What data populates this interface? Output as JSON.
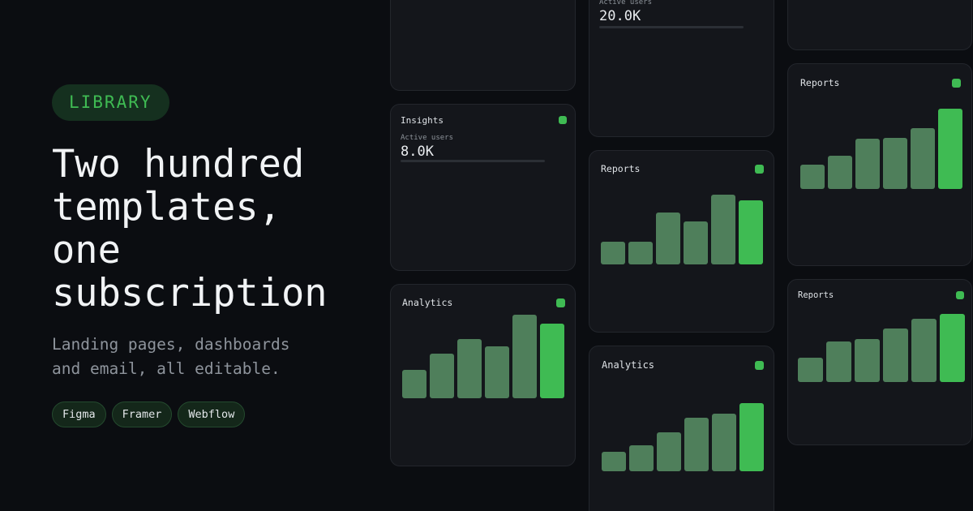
{
  "hero": {
    "badge": "LIBRARY",
    "headline_lines": [
      "Two hundred",
      "templates,",
      "one",
      "subscription"
    ],
    "subhead_lines": [
      "Landing pages, dashboards",
      "and email, all editable."
    ],
    "chips": [
      "Figma",
      "Framer",
      "Webflow"
    ]
  },
  "colors": {
    "accent": "#3fbb53",
    "bar": "#4f7f5b",
    "card": "#14161b",
    "background": "#0b0d11"
  },
  "cards": [
    {
      "type": "blank"
    },
    {
      "type": "metric",
      "title": "Insights",
      "label": "Active users",
      "value": "8.0K",
      "progress": 0.0
    },
    {
      "type": "bars",
      "title": "Analytics",
      "values": [
        0.34,
        0.53,
        0.71,
        0.62,
        1.0,
        0.89
      ]
    },
    {
      "type": "metric",
      "title": "",
      "label": "Active users",
      "value": "20.0K",
      "progress": 0.0
    },
    {
      "type": "bars",
      "title": "Reports",
      "values": [
        0.33,
        0.33,
        0.74,
        0.62,
        1.0,
        0.92
      ]
    },
    {
      "type": "bars",
      "title": "Analytics",
      "values": [
        0.28,
        0.38,
        0.57,
        0.79,
        0.85,
        1.0
      ]
    },
    {
      "type": "blank"
    },
    {
      "type": "bars",
      "title": "Reports",
      "values": [
        0.3,
        0.41,
        0.63,
        0.64,
        0.76,
        1.0
      ]
    },
    {
      "type": "bars",
      "title": "Reports",
      "values": [
        0.36,
        0.6,
        0.63,
        0.78,
        0.93,
        1.0
      ]
    }
  ]
}
